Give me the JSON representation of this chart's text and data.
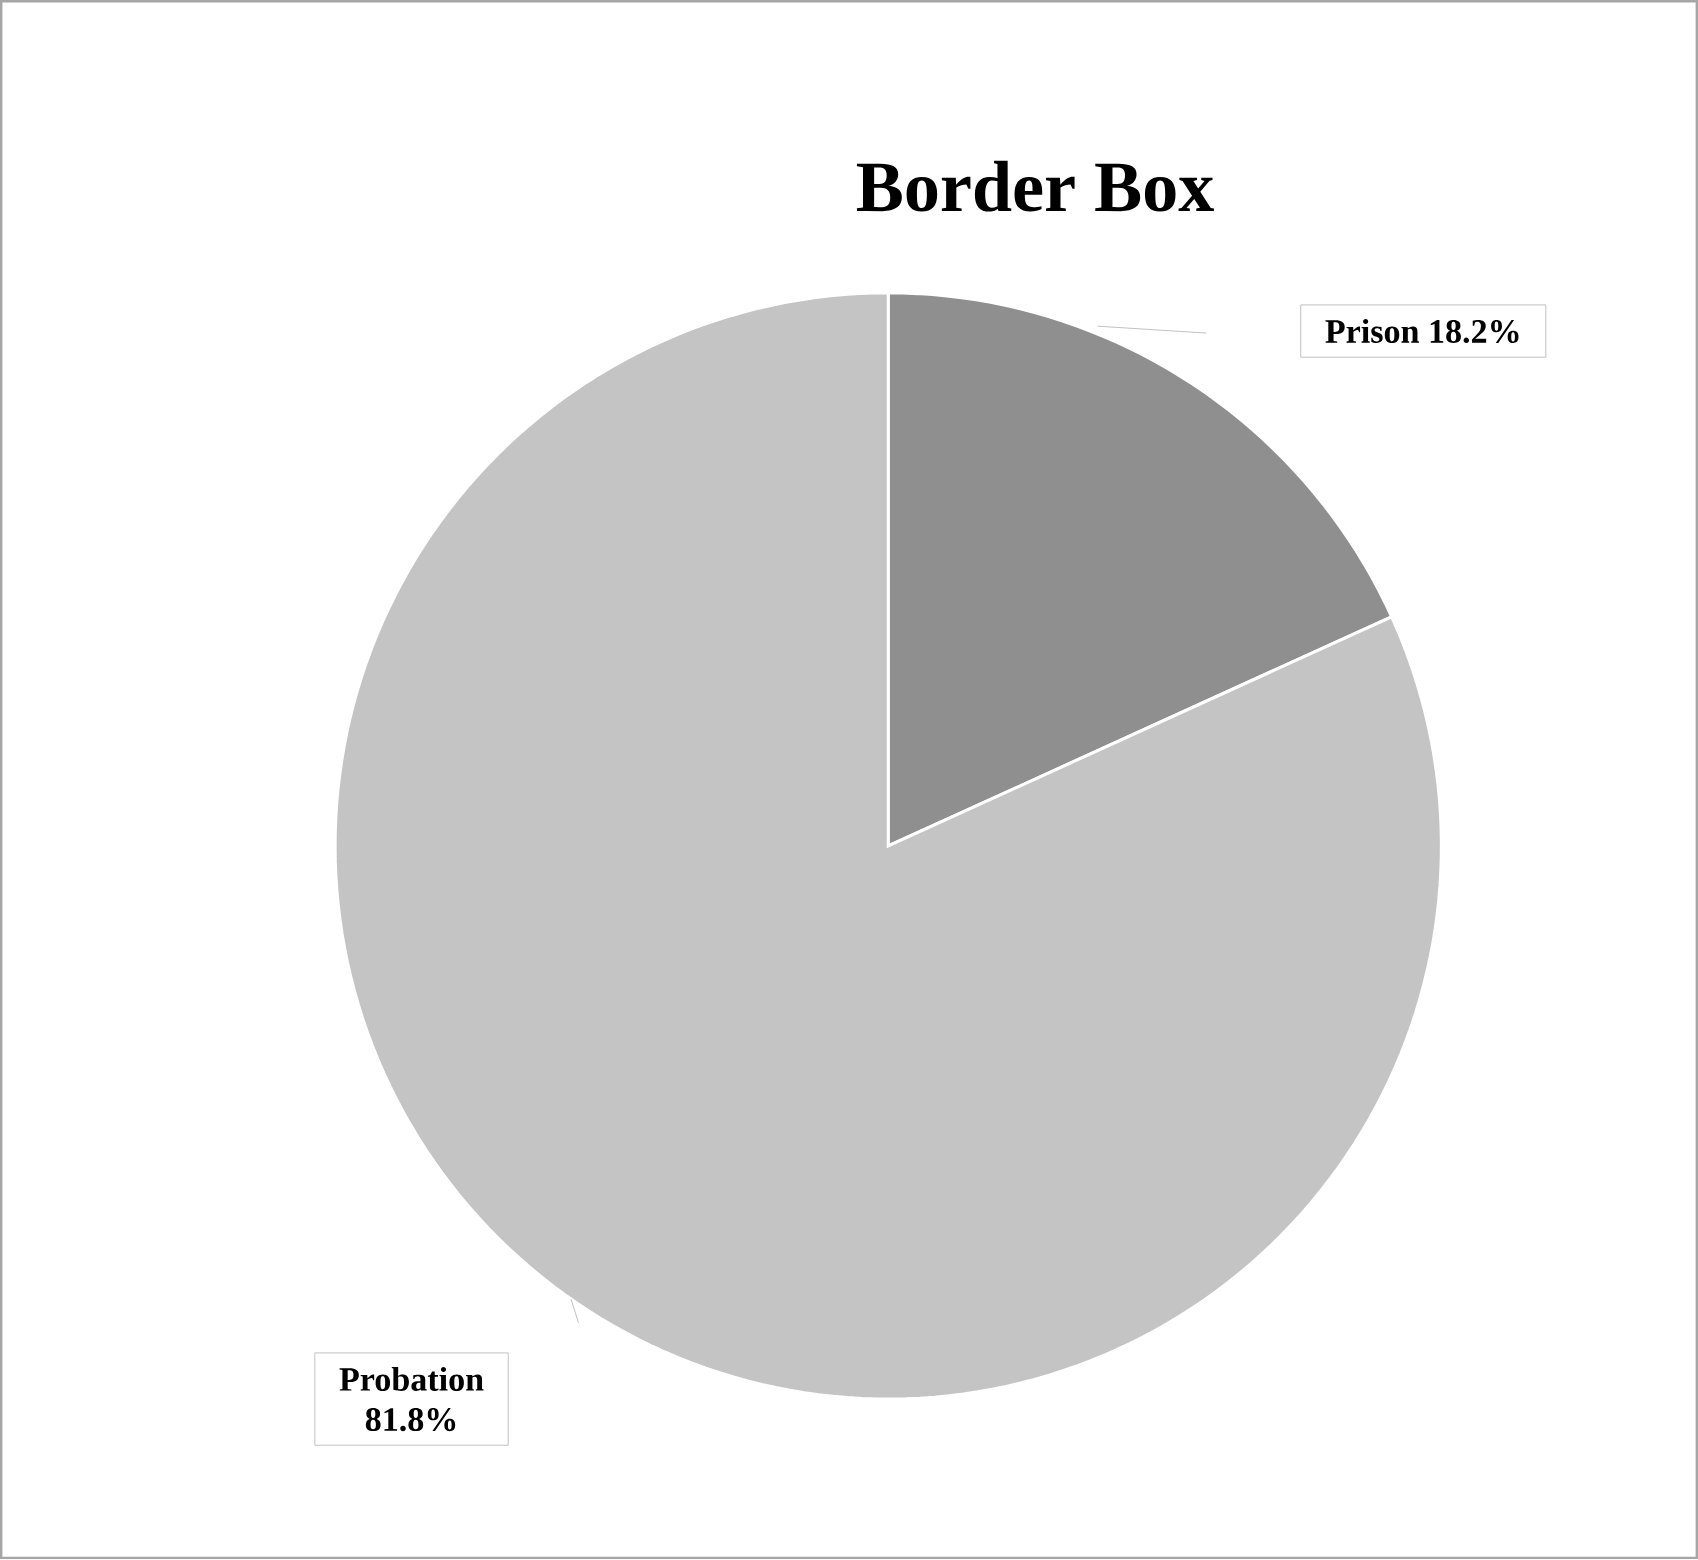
{
  "chart_data": {
    "type": "pie",
    "title": "Border Box",
    "categories": [
      "Prison",
      "Probation"
    ],
    "values": [
      18.2,
      81.8
    ],
    "colors": [
      "#8f8f8f",
      "#c4c4c4"
    ],
    "value_labels": [
      "18.2%",
      "81.8%"
    ]
  }
}
